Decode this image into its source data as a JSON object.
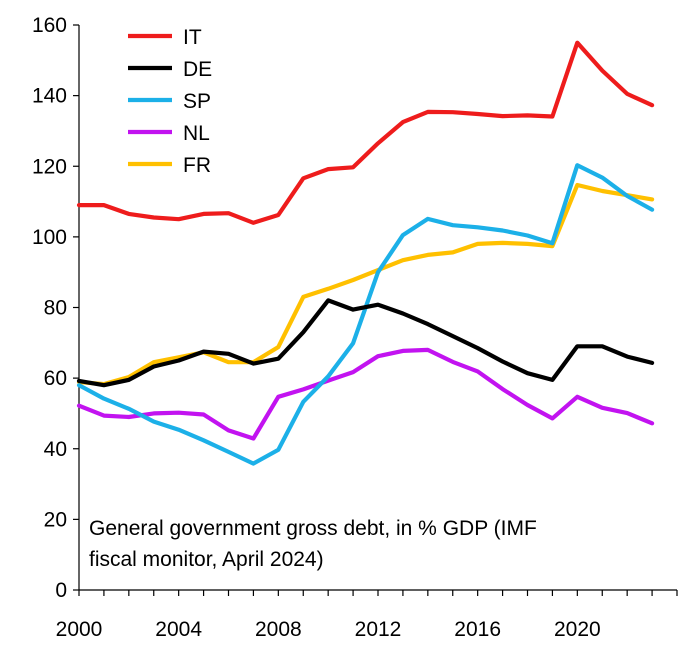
{
  "chart_data": {
    "type": "line",
    "title": "",
    "xlabel": "",
    "ylabel": "",
    "annotation_lines": [
      "General government gross debt, in % GDP (IMF",
      "fiscal monitor, April 2024)"
    ],
    "x": [
      2000,
      2001,
      2002,
      2003,
      2004,
      2005,
      2006,
      2007,
      2008,
      2009,
      2010,
      2011,
      2012,
      2013,
      2014,
      2015,
      2016,
      2017,
      2018,
      2019,
      2020,
      2021,
      2022,
      2023
    ],
    "xlim": [
      2000,
      2024
    ],
    "ylim": [
      0,
      160
    ],
    "x_ticks": [
      2000,
      2004,
      2008,
      2012,
      2016,
      2020
    ],
    "x_tick_labels": [
      "2000",
      "2004",
      "2008",
      "2012",
      "2016",
      "2020"
    ],
    "y_ticks": [
      0,
      20,
      40,
      60,
      80,
      100,
      120,
      140,
      160
    ],
    "y_tick_labels": [
      "0",
      "20",
      "40",
      "60",
      "80",
      "100",
      "120",
      "140",
      "160"
    ],
    "grid": false,
    "legend_position": "top-left",
    "series": [
      {
        "name": "IT",
        "color": "#ee1c1c",
        "values": [
          109,
          109,
          106.5,
          105.5,
          105,
          106.5,
          106.7,
          104,
          106.2,
          116.6,
          119.2,
          119.7,
          126.5,
          132.5,
          135.4,
          135.3,
          134.8,
          134.2,
          134.4,
          134.1,
          155,
          147.1,
          140.5,
          137.3
        ]
      },
      {
        "name": "DE",
        "color": "#000000",
        "values": [
          59.2,
          58,
          59.5,
          63.3,
          65,
          67.5,
          66.9,
          64.1,
          65.5,
          73,
          82,
          79.4,
          80.8,
          78.3,
          75.3,
          71.9,
          68.5,
          64.7,
          61.4,
          59.5,
          69,
          69,
          66.1,
          64.3
        ]
      },
      {
        "name": "SP",
        "color": "#1cb0e8",
        "values": [
          58,
          54.2,
          51.3,
          47.7,
          45.4,
          42.4,
          39.1,
          35.8,
          39.7,
          53.3,
          60.5,
          69.9,
          90,
          100.5,
          105.1,
          103.3,
          102.7,
          101.8,
          100.4,
          98.2,
          120.3,
          116.8,
          111.6,
          107.7
        ]
      },
      {
        "name": "NL",
        "color": "#c213f0",
        "values": [
          52.2,
          49.4,
          49,
          50,
          50.2,
          49.7,
          45.2,
          42.9,
          54.7,
          56.8,
          59.3,
          61.7,
          66.2,
          67.7,
          68,
          64.6,
          61.9,
          56.9,
          52.4,
          48.6,
          54.7,
          51.6,
          50.1,
          47.2
        ]
      },
      {
        "name": "FR",
        "color": "#ffc000",
        "values": [
          58.9,
          58.3,
          60.3,
          64.5,
          65.9,
          67.3,
          64.5,
          64.5,
          68.8,
          83,
          85.3,
          87.8,
          90.6,
          93.4,
          94.9,
          95.6,
          98,
          98.3,
          98,
          97.4,
          114.7,
          113,
          111.8,
          110.6
        ]
      }
    ]
  }
}
